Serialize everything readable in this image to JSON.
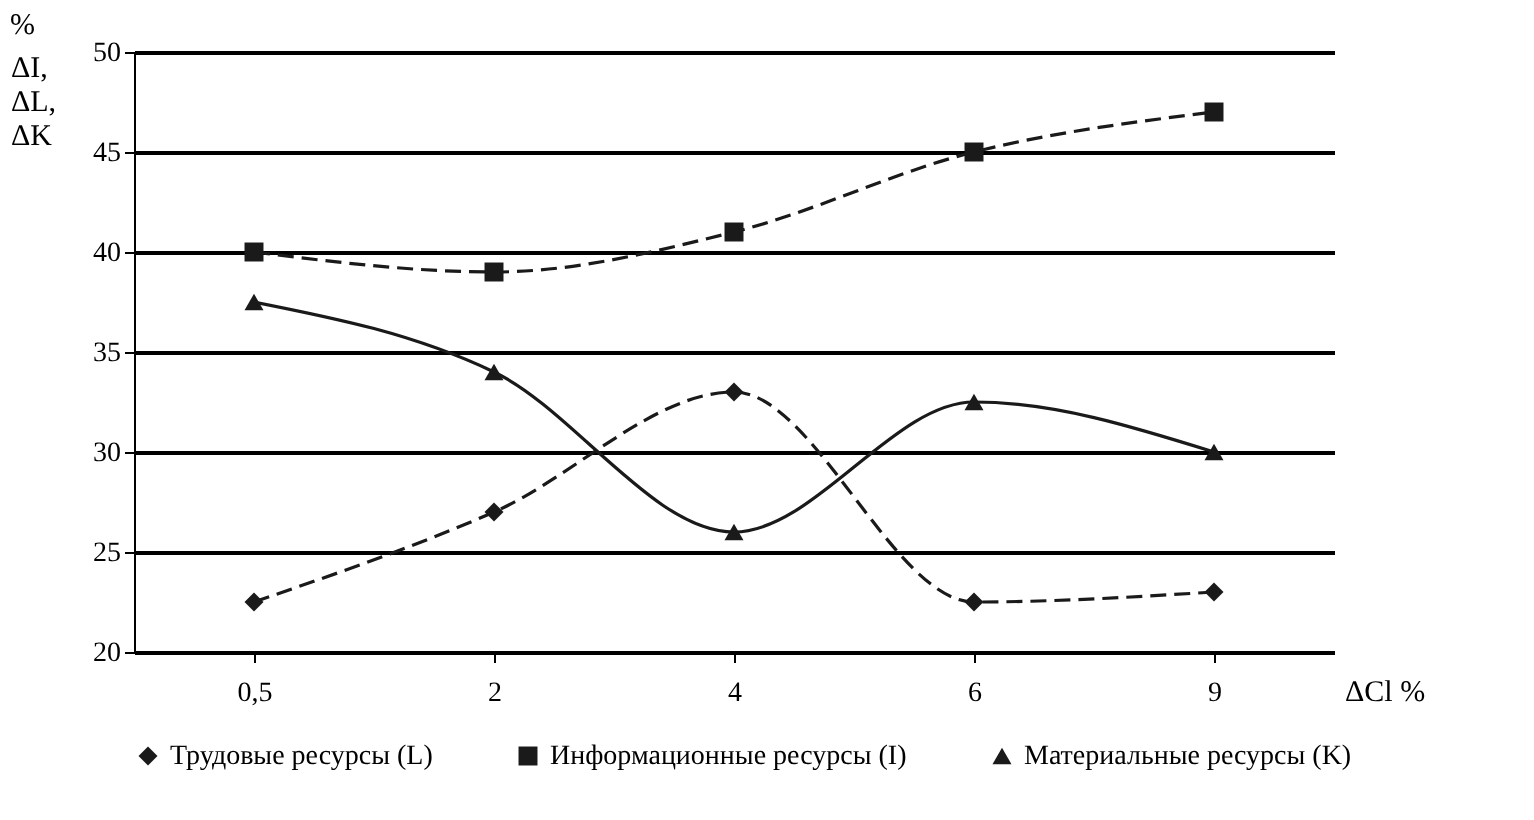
{
  "chart_data": {
    "type": "line",
    "xlabel": "ΔCl %",
    "ylabel": "ΔI, ΔL, ΔK",
    "annotations": [
      "%"
    ],
    "categories": [
      "0,5",
      "2",
      "4",
      "6",
      "9"
    ],
    "series": [
      {
        "name": "Трудовые ресурсы (L)",
        "color": "#1a1a1a",
        "marker": "diamond",
        "line_style": "dashed",
        "values": [
          22.5,
          27,
          33,
          22.5,
          23
        ]
      },
      {
        "name": "Информационные ресурсы (I)",
        "color": "#1a1a1a",
        "marker": "square",
        "line_style": "dashed",
        "values": [
          40,
          39,
          41,
          45,
          47
        ]
      },
      {
        "name": "Материальные ресурсы (K)",
        "color": "#1a1a1a",
        "marker": "triangle",
        "line_style": "solid",
        "values": [
          37.5,
          34,
          26,
          32.5,
          30
        ]
      }
    ],
    "ylim": [
      20,
      50
    ],
    "yticks": [
      20,
      25,
      30,
      35,
      40,
      45,
      50
    ],
    "grid": "y",
    "legend": "bottom"
  }
}
